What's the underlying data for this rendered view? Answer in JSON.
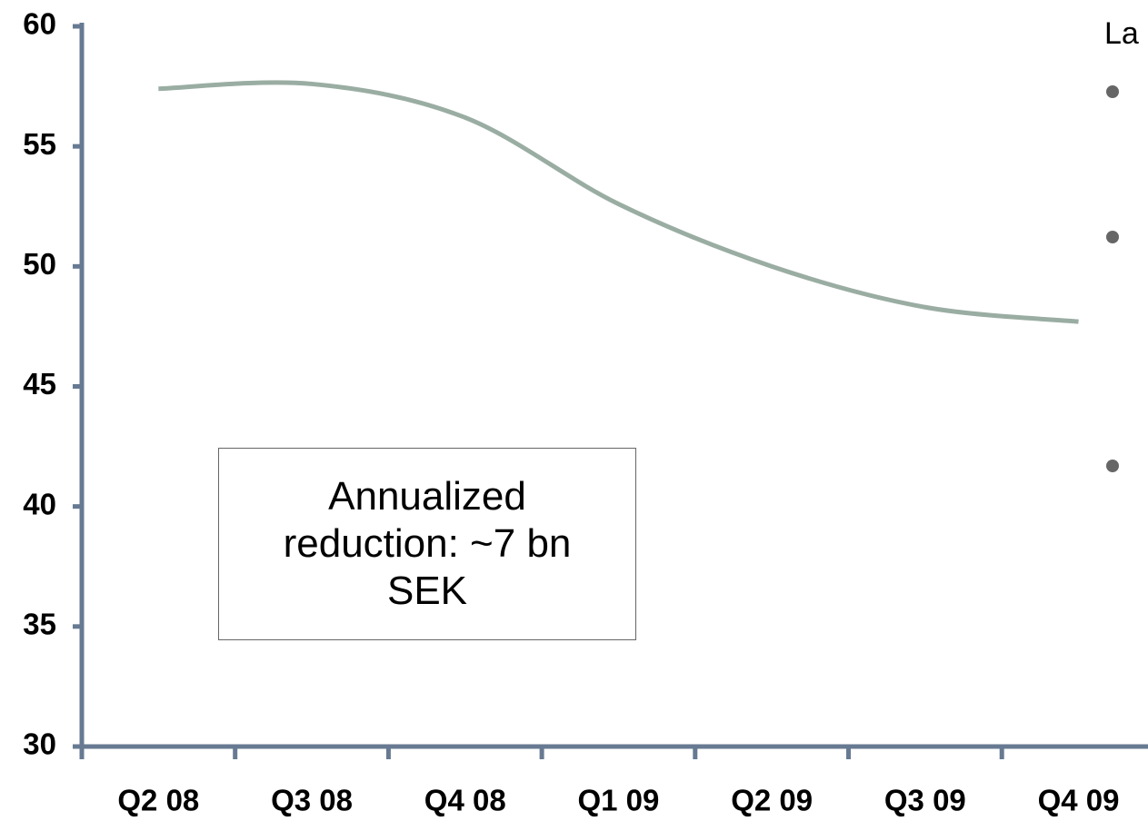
{
  "chart_data": {
    "type": "line",
    "categories": [
      "Q2 08",
      "Q3 08",
      "Q4 08",
      "Q1 09",
      "Q2 09",
      "Q3 09",
      "Q4 09"
    ],
    "values": [
      57.4,
      57.6,
      56.2,
      52.6,
      50.0,
      48.3,
      47.7
    ],
    "color": "#9aada3",
    "ylim": [
      30,
      60
    ],
    "yticks": [
      30,
      35,
      40,
      45,
      50,
      55,
      60
    ],
    "annotation": "Annualized reduction: ~7 bn SEK",
    "side_text": "La"
  }
}
